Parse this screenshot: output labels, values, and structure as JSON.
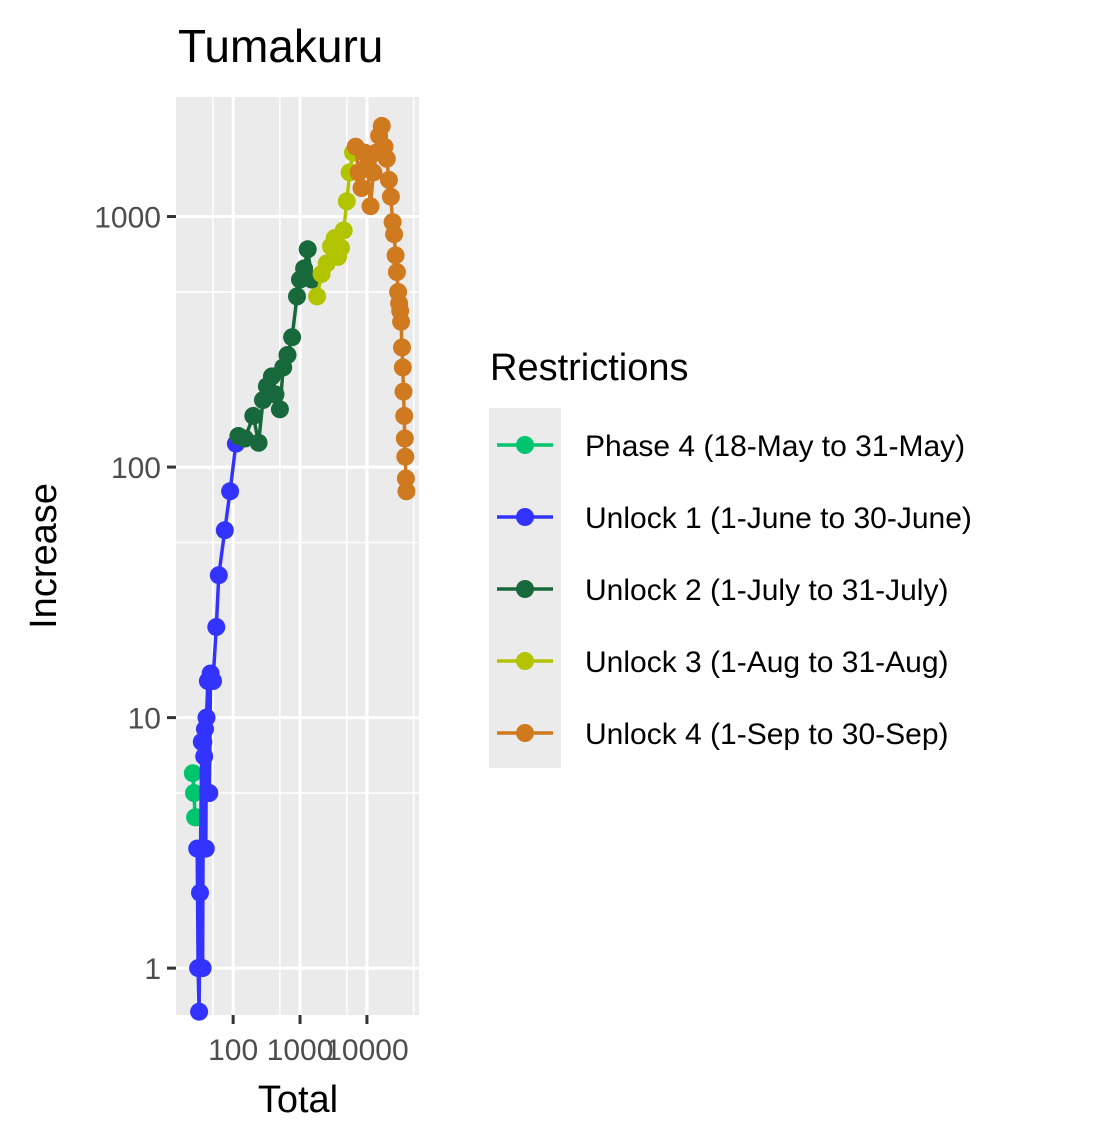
{
  "chart_data": {
    "type": "line",
    "title": "Tumakuru",
    "xlabel": "Total",
    "ylabel": "Increase",
    "x_scale": "log10",
    "y_scale": "log10",
    "xlim": [
      14,
      60000
    ],
    "ylim": [
      0.65,
      3000
    ],
    "x_ticks": [
      {
        "value": 100,
        "label": "100"
      },
      {
        "value": 1000,
        "label": "1000"
      },
      {
        "value": 10000,
        "label": "10000"
      }
    ],
    "y_ticks": [
      {
        "value": 1,
        "label": "1"
      },
      {
        "value": 10,
        "label": "10"
      },
      {
        "value": 100,
        "label": "100"
      },
      {
        "value": 1000,
        "label": "1000"
      }
    ],
    "grid": true,
    "panel_background": "#ebebeb",
    "grid_color": "#ffffff",
    "legend": {
      "title": "Restrictions",
      "position": "right"
    },
    "series": [
      {
        "name": "Phase 4 (18-May to 31-May)",
        "color": "#00c46e",
        "x": [
          25,
          26,
          27,
          28
        ],
        "y": [
          6,
          5,
          4,
          4
        ]
      },
      {
        "name": "Unlock 1 (1-June to 30-June)",
        "color": "#3333ff",
        "x": [
          29,
          30,
          31,
          32,
          34,
          35,
          36,
          37,
          38,
          39,
          40,
          42,
          44,
          46,
          50,
          56,
          61,
          75,
          90,
          110
        ],
        "y": [
          3,
          1,
          0.67,
          2,
          8,
          1,
          8,
          7,
          9,
          3,
          10,
          14,
          5,
          15,
          14,
          23,
          37,
          56,
          80,
          124
        ]
      },
      {
        "name": "Unlock 2 (1-July to 31-July)",
        "color": "#17683a",
        "x": [
          120,
          150,
          200,
          240,
          280,
          320,
          380,
          430,
          500,
          560,
          650,
          760,
          900,
          1000,
          1150,
          1300,
          1500
        ],
        "y": [
          133,
          130,
          160,
          125,
          185,
          210,
          230,
          195,
          170,
          250,
          280,
          330,
          480,
          560,
          620,
          740,
          560
        ]
      },
      {
        "name": "Unlock 3 (1-Aug to 31-Aug)",
        "color": "#b2c400",
        "x": [
          1800,
          2100,
          2500,
          2900,
          3300,
          3700,
          4100,
          4500,
          5000,
          5500,
          6200
        ],
        "y": [
          480,
          590,
          650,
          760,
          820,
          690,
          750,
          880,
          1150,
          1500,
          1800
        ]
      },
      {
        "name": "Unlock 4 (1-Sep to 30-Sep)",
        "color": "#d07a20",
        "x": [
          6800,
          7500,
          8300,
          9200,
          10200,
          11300,
          12500,
          13800,
          15200,
          16700,
          18300,
          19800,
          21300,
          22800,
          24200,
          25500,
          26800,
          28000,
          29200,
          30300,
          31400,
          32400,
          33400,
          34300,
          35200,
          36000,
          36800,
          37500,
          38200,
          38900
        ],
        "y": [
          1900,
          1500,
          1300,
          1800,
          1600,
          1100,
          1500,
          1800,
          2100,
          2300,
          1900,
          1700,
          1400,
          1200,
          950,
          850,
          700,
          600,
          500,
          450,
          420,
          380,
          300,
          250,
          200,
          160,
          130,
          110,
          90,
          80
        ]
      }
    ]
  }
}
